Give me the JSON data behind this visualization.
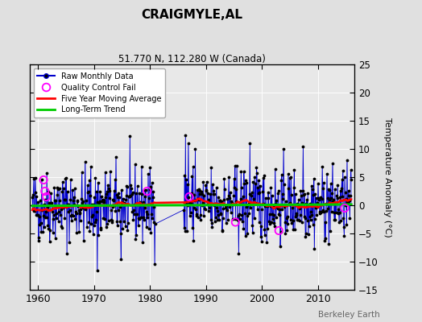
{
  "title": "CRAIGMYLE,AL",
  "subtitle": "51.770 N, 112.280 W (Canada)",
  "ylabel": "Temperature Anomaly (°C)",
  "watermark": "Berkeley Earth",
  "xlim": [
    1958.5,
    2016.5
  ],
  "ylim": [
    -15,
    25
  ],
  "yticks": [
    -15,
    -10,
    -5,
    0,
    5,
    10,
    15,
    20,
    25
  ],
  "xticks": [
    1960,
    1970,
    1980,
    1990,
    2000,
    2010
  ],
  "bg_color": "#e0e0e0",
  "plot_bg_color": "#e8e8e8",
  "raw_color": "#0000cc",
  "raw_fill_color": "#8888ee",
  "dot_color": "#000000",
  "qc_color": "#ff00ff",
  "moving_avg_color": "#ff0000",
  "trend_color": "#00cc00",
  "seed": 42,
  "start_year": 1959,
  "end_year": 2015,
  "gap_start_year": 1981,
  "gap_end_year": 1986,
  "moving_avg_window": 60,
  "qc_fail_times": [
    1961.0,
    1961.25,
    1961.5,
    1979.5,
    1987.0,
    1995.25,
    2003.0,
    2014.75
  ],
  "qc_fail_values": [
    4.5,
    2.5,
    1.5,
    2.5,
    1.5,
    -3.0,
    -4.5,
    -0.5
  ]
}
